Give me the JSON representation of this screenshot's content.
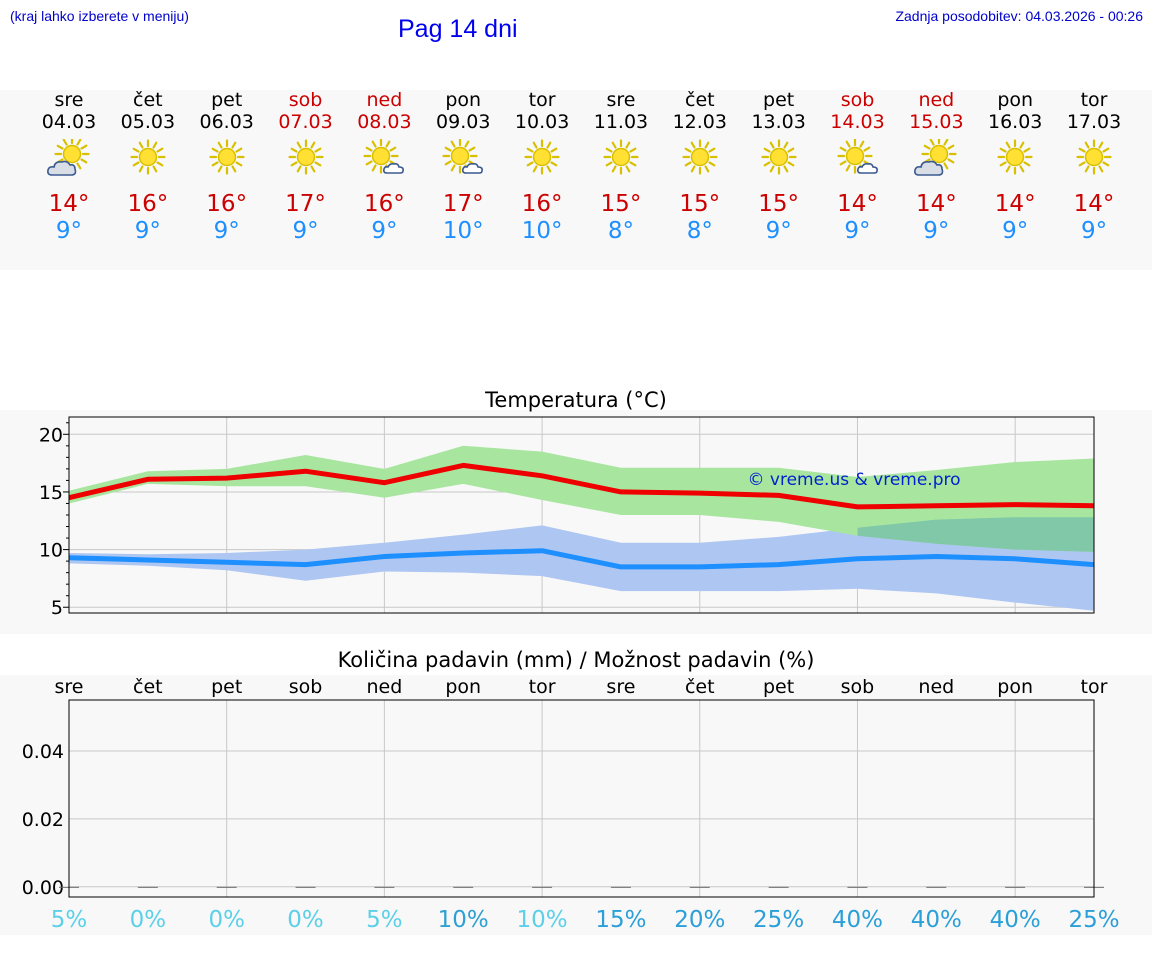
{
  "header": {
    "hint": "(kraj lahko izberete v meniju)",
    "title": "Pag 14 dni",
    "updated": "Zadnja posodobitev: 04.03.2026 - 00:26"
  },
  "days": [
    {
      "name": "sre",
      "date": "04.03",
      "weekend": false,
      "icon": "sun-cloud-icon",
      "tmax": "14°",
      "tmin": "9°"
    },
    {
      "name": "čet",
      "date": "05.03",
      "weekend": false,
      "icon": "sun-icon",
      "tmax": "16°",
      "tmin": "9°"
    },
    {
      "name": "pet",
      "date": "06.03",
      "weekend": false,
      "icon": "sun-icon",
      "tmax": "16°",
      "tmin": "9°"
    },
    {
      "name": "sob",
      "date": "07.03",
      "weekend": true,
      "icon": "sun-icon",
      "tmax": "17°",
      "tmin": "9°"
    },
    {
      "name": "ned",
      "date": "08.03",
      "weekend": true,
      "icon": "sun-small-cloud-icon",
      "tmax": "16°",
      "tmin": "9°"
    },
    {
      "name": "pon",
      "date": "09.03",
      "weekend": false,
      "icon": "sun-small-cloud-icon",
      "tmax": "17°",
      "tmin": "10°"
    },
    {
      "name": "tor",
      "date": "10.03",
      "weekend": false,
      "icon": "sun-icon",
      "tmax": "16°",
      "tmin": "10°"
    },
    {
      "name": "sre",
      "date": "11.03",
      "weekend": false,
      "icon": "sun-icon",
      "tmax": "15°",
      "tmin": "8°"
    },
    {
      "name": "čet",
      "date": "12.03",
      "weekend": false,
      "icon": "sun-icon",
      "tmax": "15°",
      "tmin": "8°"
    },
    {
      "name": "pet",
      "date": "13.03",
      "weekend": false,
      "icon": "sun-icon",
      "tmax": "15°",
      "tmin": "9°"
    },
    {
      "name": "sob",
      "date": "14.03",
      "weekend": true,
      "icon": "sun-small-cloud-icon",
      "tmax": "14°",
      "tmin": "9°"
    },
    {
      "name": "ned",
      "date": "15.03",
      "weekend": true,
      "icon": "sun-cloud-icon",
      "tmax": "14°",
      "tmin": "9°"
    },
    {
      "name": "pon",
      "date": "16.03",
      "weekend": false,
      "icon": "sun-icon",
      "tmax": "14°",
      "tmin": "9°"
    },
    {
      "name": "tor",
      "date": "17.03",
      "weekend": false,
      "icon": "sun-icon",
      "tmax": "14°",
      "tmin": "9°"
    }
  ],
  "chart_data": [
    {
      "type": "line",
      "title": "Temperatura (°C)",
      "watermark": "© vreme.us & vreme.pro",
      "x": [
        0,
        1,
        2,
        3,
        4,
        5,
        6,
        7,
        8,
        9,
        10,
        11,
        12,
        13
      ],
      "ylim": [
        4.5,
        21.5
      ],
      "yticks": [
        5,
        10,
        15,
        20
      ],
      "grid": true,
      "colors": {
        "max": "#ee0000",
        "min": "#1e8fff",
        "max_band": "#a8e6a0",
        "min_band": "#aec6f2",
        "overlap": "#7bc4a8"
      },
      "series": [
        {
          "name": "max",
          "values": [
            14.5,
            16.1,
            16.2,
            16.8,
            15.8,
            17.3,
            16.4,
            15.0,
            14.9,
            14.7,
            13.7,
            13.8,
            13.9,
            13.8
          ]
        },
        {
          "name": "min",
          "values": [
            9.3,
            9.1,
            8.9,
            8.7,
            9.4,
            9.7,
            9.9,
            8.5,
            8.5,
            8.7,
            9.2,
            9.4,
            9.2,
            8.7
          ]
        },
        {
          "name": "max_low",
          "values": [
            14.0,
            15.7,
            15.5,
            15.5,
            14.5,
            15.7,
            14.3,
            13.0,
            13.0,
            12.4,
            11.2,
            10.5,
            10.0,
            9.8
          ]
        },
        {
          "name": "max_high",
          "values": [
            15.1,
            16.8,
            17.0,
            18.2,
            17.0,
            19.0,
            18.5,
            17.1,
            17.1,
            17.1,
            16.3,
            16.9,
            17.6,
            17.9
          ]
        },
        {
          "name": "min_low",
          "values": [
            8.8,
            8.6,
            8.2,
            7.3,
            8.1,
            8.0,
            7.7,
            6.4,
            6.4,
            6.4,
            6.6,
            6.2,
            5.4,
            4.7
          ]
        },
        {
          "name": "min_high",
          "values": [
            9.7,
            9.6,
            9.7,
            10.0,
            10.6,
            11.3,
            12.1,
            10.6,
            10.6,
            11.1,
            11.9,
            12.6,
            12.8,
            12.8
          ]
        }
      ]
    },
    {
      "type": "bar",
      "title": "Količina padavin (mm) / Možnost padavin (%)",
      "categories": [
        "sre",
        "čet",
        "pet",
        "sob",
        "ned",
        "pon",
        "tor",
        "sre",
        "čet",
        "pet",
        "sob",
        "ned",
        "pon",
        "tor"
      ],
      "values": [
        0,
        0,
        0,
        0,
        0,
        0,
        0,
        0,
        0,
        0,
        0,
        0,
        0,
        0
      ],
      "ylim": [
        -0.003,
        0.055
      ],
      "yticks": [
        "0.00",
        "0.02",
        "0.04"
      ],
      "ytick_values": [
        0,
        0.02,
        0.04
      ],
      "grid": true,
      "probability": [
        "5%",
        "0%",
        "0%",
        "0%",
        "5%",
        "10%",
        "10%",
        "15%",
        "20%",
        "25%",
        "40%",
        "40%",
        "40%",
        "25%"
      ],
      "probability_values": [
        5,
        0,
        0,
        0,
        5,
        10,
        10,
        15,
        20,
        25,
        40,
        40,
        40,
        25
      ]
    }
  ]
}
